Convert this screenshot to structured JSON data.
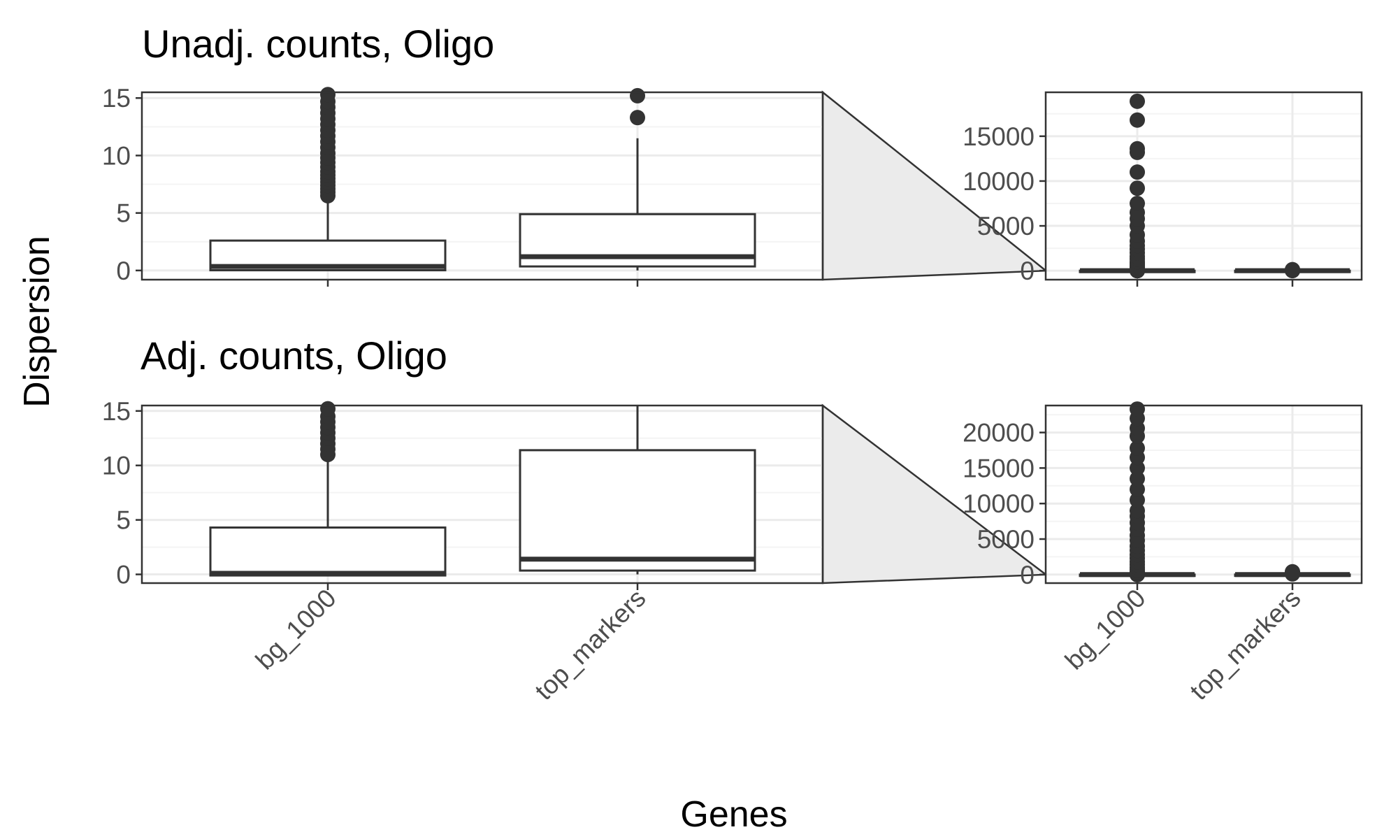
{
  "chart_data": {
    "type": "box",
    "xlabel": "Genes",
    "ylabel": "Dispersion",
    "colors": {
      "box_outline": "#333333",
      "grid_major": "#ebebeb",
      "grid_minor": "#f4f4f4",
      "zoom_band": "#ebebeb",
      "tick_text": "#4d4d4d"
    },
    "panels": [
      {
        "title": "Unadj. counts, Oligo",
        "categories": [
          "bg_1000",
          "top_markers"
        ],
        "zoom": {
          "ylim": [
            -0.8,
            15.5
          ],
          "ticks": [
            0,
            5,
            10,
            15
          ],
          "tick_labels": [
            "0",
            "5",
            "10",
            "15"
          ]
        },
        "full": {
          "ylim": [
            -1000,
            19900
          ],
          "ticks": [
            0,
            5000,
            10000,
            15000
          ],
          "tick_labels": [
            "0",
            "5000",
            "10000",
            "15000"
          ]
        },
        "boxes": [
          {
            "category": "bg_1000",
            "q1": 0.02,
            "median": 0.35,
            "q3": 2.6,
            "whisker_low": 0,
            "whisker_high": 6.4,
            "outliers": [
              6.5,
              6.8,
              7.1,
              7.4,
              7.7,
              8.0,
              8.3,
              8.6,
              9.0,
              9.4,
              9.8,
              10.2,
              10.7,
              11.2,
              11.7,
              12.2,
              12.7,
              13.2,
              13.7,
              14.2,
              14.7,
              15.3,
              30,
              60,
              100,
              150,
              250,
              400,
              600,
              800,
              1000,
              1300,
              1600,
              2000,
              2400,
              2800,
              3300,
              4000,
              5000,
              5800,
              6500,
              7500,
              9200,
              11000,
              13200,
              13600,
              16800,
              18900
            ]
          },
          {
            "category": "top_markers",
            "q1": 0.35,
            "median": 1.2,
            "q3": 4.9,
            "whisker_low": 0,
            "whisker_high": 11.5,
            "outliers": [
              13.3,
              15.2,
              30,
              60,
              90,
              120
            ]
          }
        ]
      },
      {
        "title": "Adj. counts, Oligo",
        "categories": [
          "bg_1000",
          "top_markers"
        ],
        "zoom": {
          "ylim": [
            -0.8,
            15.5
          ],
          "ticks": [
            0,
            5,
            10,
            15
          ],
          "tick_labels": [
            "0",
            "5",
            "10",
            "15"
          ]
        },
        "full": {
          "ylim": [
            -1200,
            23800
          ],
          "ticks": [
            0,
            5000,
            10000,
            15000,
            20000
          ],
          "tick_labels": [
            "0",
            "5000",
            "10000",
            "15000",
            "20000"
          ]
        },
        "boxes": [
          {
            "category": "bg_1000",
            "q1": -0.1,
            "median": 0.1,
            "q3": 4.3,
            "whisker_low": -0.1,
            "whisker_high": 10.8,
            "outliers": [
              11.0,
              11.5,
              12.0,
              12.5,
              13.0,
              13.5,
              14.0,
              14.5,
              15.2,
              30,
              60,
              100,
              200,
              400,
              700,
              1000,
              1400,
              1800,
              2300,
              2800,
              3400,
              4000,
              4800,
              5500,
              6400,
              7300,
              8200,
              9000,
              10500,
              12000,
              13500,
              15000,
              16500,
              17800,
              19500,
              20600,
              22000,
              23300
            ]
          },
          {
            "category": "top_markers",
            "q1": 0.35,
            "median": 1.4,
            "q3": 11.4,
            "whisker_low": 0,
            "whisker_high": 15.6,
            "outliers": [
              100,
              200,
              300,
              400
            ]
          }
        ]
      }
    ]
  }
}
